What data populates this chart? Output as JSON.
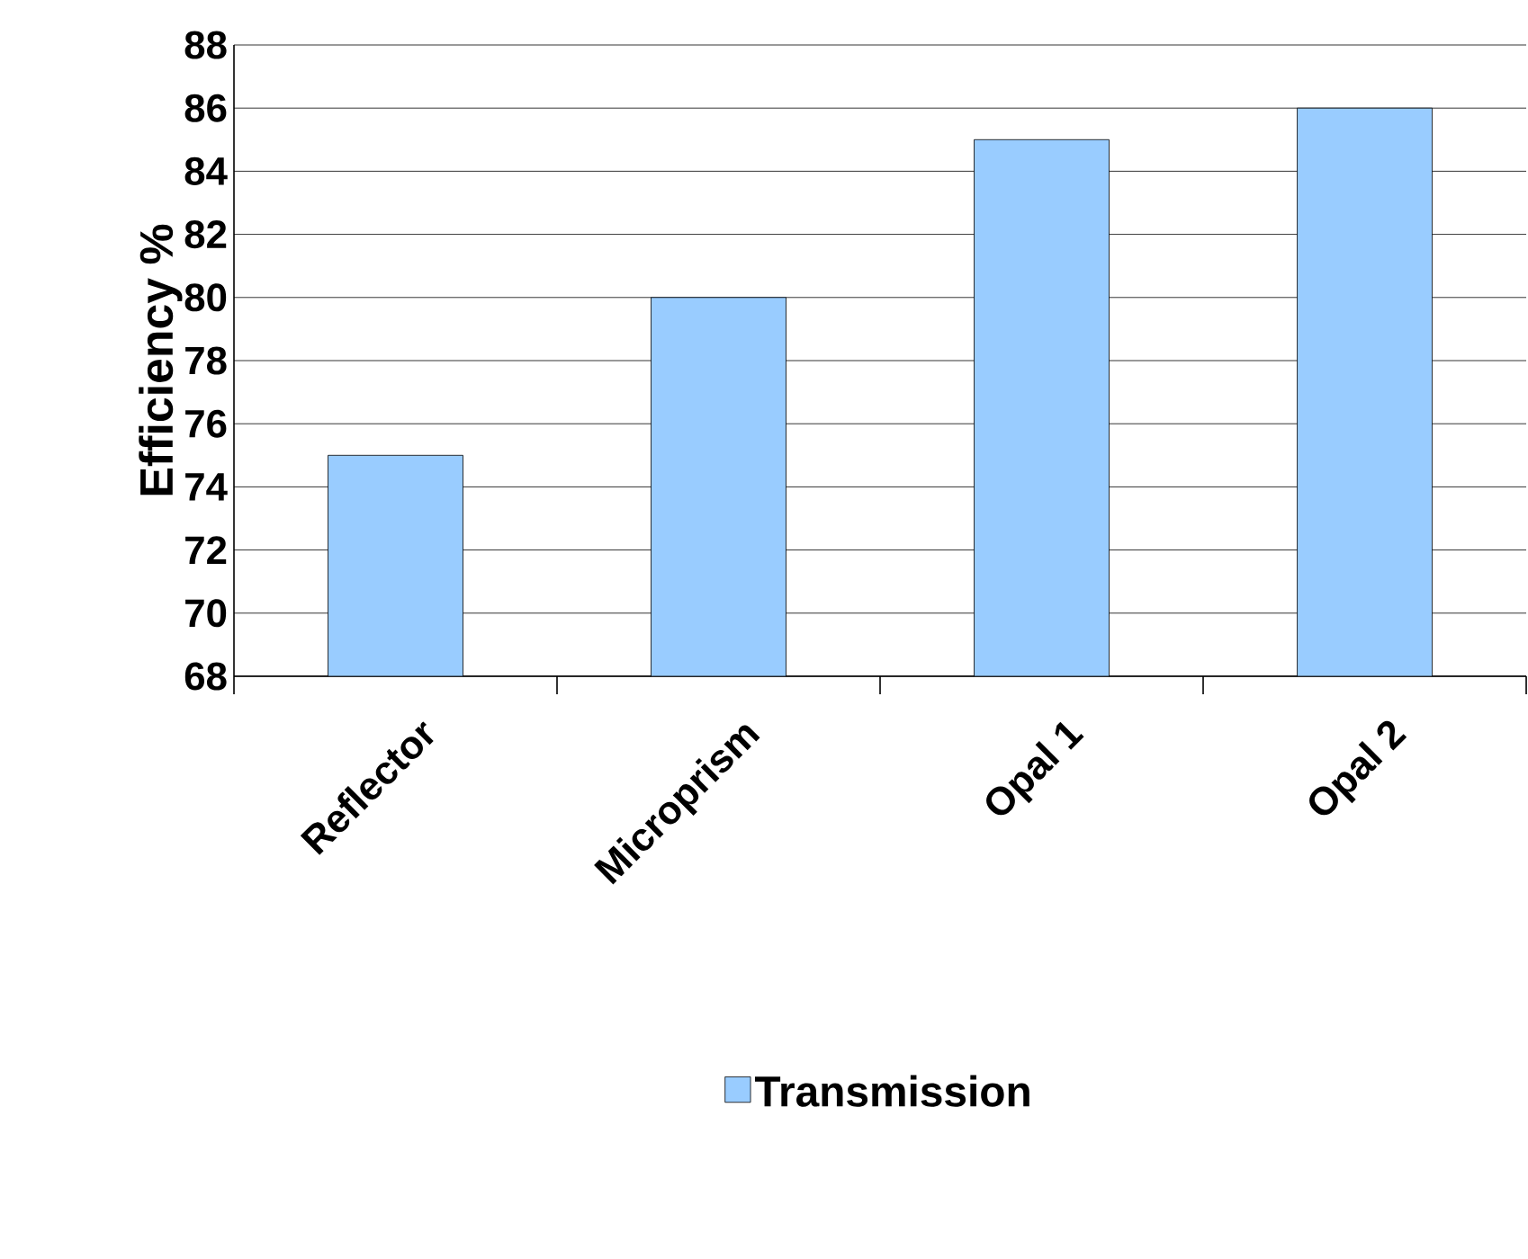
{
  "chart_data": {
    "type": "bar",
    "ylabel": "Efficiency %",
    "categories": [
      "Reflector",
      "Microprism",
      "Opal 1",
      "Opal 2"
    ],
    "series": [
      {
        "name": "Transmission",
        "color": "#99ccff",
        "values": [
          75,
          80,
          85,
          86
        ]
      }
    ],
    "ylim": [
      68,
      88
    ],
    "yticks": [
      68,
      70,
      72,
      74,
      76,
      78,
      80,
      82,
      84,
      86,
      88
    ],
    "grid": "y",
    "legend": "bottom"
  }
}
